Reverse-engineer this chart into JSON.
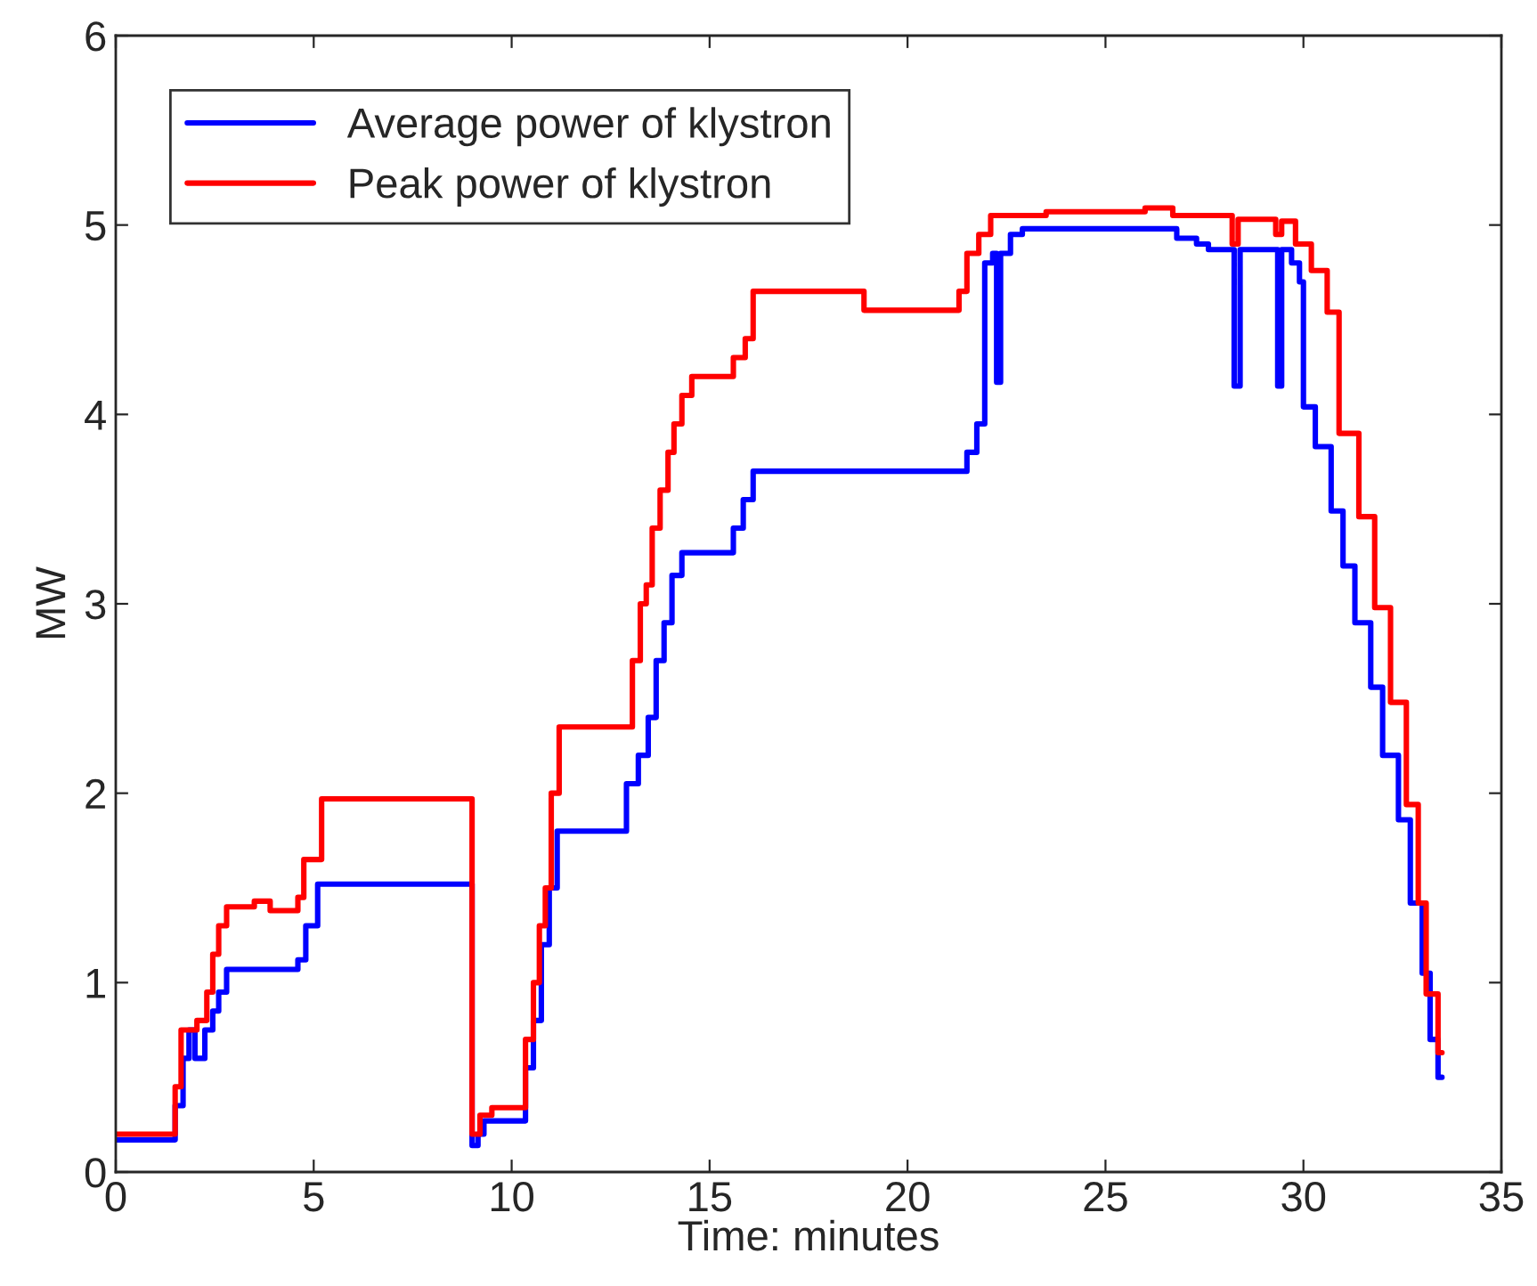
{
  "chart_data": {
    "type": "step",
    "xlabel": "Time: minutes",
    "ylabel": "MW",
    "xlim": [
      0,
      35
    ],
    "ylim": [
      0,
      6
    ],
    "xticks": [
      0,
      5,
      10,
      15,
      20,
      25,
      30,
      35
    ],
    "yticks": [
      0,
      1,
      2,
      3,
      4,
      5,
      6
    ],
    "grid": false,
    "legend": "top left",
    "marker": "none",
    "line_style": "solid",
    "series": [
      {
        "name": "Average power of klystron",
        "color": "#0000ff",
        "x": [
          0,
          1.5,
          1.7,
          1.85,
          2.0,
          2.25,
          2.45,
          2.6,
          2.8,
          4.6,
          4.8,
          5.1,
          9.0,
          9.15,
          9.3,
          10.35,
          10.55,
          10.75,
          10.95,
          11.15,
          12.9,
          13.2,
          13.45,
          13.65,
          13.85,
          14.05,
          14.3,
          15.6,
          15.85,
          16.1,
          21.5,
          21.75,
          21.95,
          22.15,
          22.25,
          22.35,
          22.6,
          22.9,
          26.8,
          27.3,
          27.6,
          28.25,
          28.4,
          29.35,
          29.45,
          29.7,
          29.9,
          30.0,
          30.3,
          30.7,
          31.0,
          31.3,
          31.7,
          32.0,
          32.4,
          32.7,
          33.0,
          33.2,
          33.4,
          33.5
        ],
        "values": [
          0.17,
          0.35,
          0.6,
          0.75,
          0.6,
          0.75,
          0.85,
          0.95,
          1.07,
          1.12,
          1.3,
          1.52,
          0.14,
          0.2,
          0.27,
          0.55,
          0.8,
          1.2,
          1.5,
          1.8,
          2.05,
          2.2,
          2.4,
          2.7,
          2.9,
          3.15,
          3.27,
          3.4,
          3.55,
          3.7,
          3.8,
          3.95,
          4.8,
          4.85,
          4.17,
          4.85,
          4.95,
          4.98,
          4.93,
          4.9,
          4.87,
          4.15,
          4.87,
          4.15,
          4.87,
          4.8,
          4.7,
          4.04,
          3.83,
          3.49,
          3.2,
          2.9,
          2.56,
          2.2,
          1.86,
          1.42,
          1.05,
          0.7,
          0.5,
          0.5
        ]
      },
      {
        "name": "Peak power of klystron",
        "color": "#ff0000",
        "x": [
          0,
          1.5,
          1.65,
          2.05,
          2.3,
          2.45,
          2.6,
          2.8,
          3.5,
          3.9,
          4.6,
          4.75,
          5.2,
          9.0,
          9.2,
          9.5,
          10.35,
          10.55,
          10.7,
          10.85,
          11.0,
          11.2,
          13.05,
          13.25,
          13.4,
          13.55,
          13.75,
          13.95,
          14.1,
          14.3,
          14.55,
          15.6,
          15.9,
          16.1,
          18.9,
          21.3,
          21.5,
          21.8,
          22.1,
          23.5,
          26.0,
          26.7,
          28.2,
          28.35,
          29.3,
          29.45,
          29.8,
          30.2,
          30.6,
          30.9,
          31.4,
          31.8,
          32.2,
          32.6,
          32.9,
          33.1,
          33.4,
          33.5
        ],
        "values": [
          0.2,
          0.45,
          0.75,
          0.8,
          0.95,
          1.15,
          1.3,
          1.4,
          1.43,
          1.38,
          1.45,
          1.65,
          1.97,
          0.2,
          0.3,
          0.34,
          0.7,
          1.0,
          1.3,
          1.5,
          2.0,
          2.35,
          2.7,
          3.0,
          3.1,
          3.4,
          3.6,
          3.8,
          3.95,
          4.1,
          4.2,
          4.3,
          4.4,
          4.65,
          4.55,
          4.65,
          4.85,
          4.95,
          5.05,
          5.07,
          5.09,
          5.05,
          4.9,
          5.03,
          4.95,
          5.02,
          4.9,
          4.76,
          4.54,
          3.9,
          3.46,
          2.98,
          2.48,
          1.94,
          1.42,
          0.94,
          0.63,
          0.63
        ]
      }
    ]
  }
}
